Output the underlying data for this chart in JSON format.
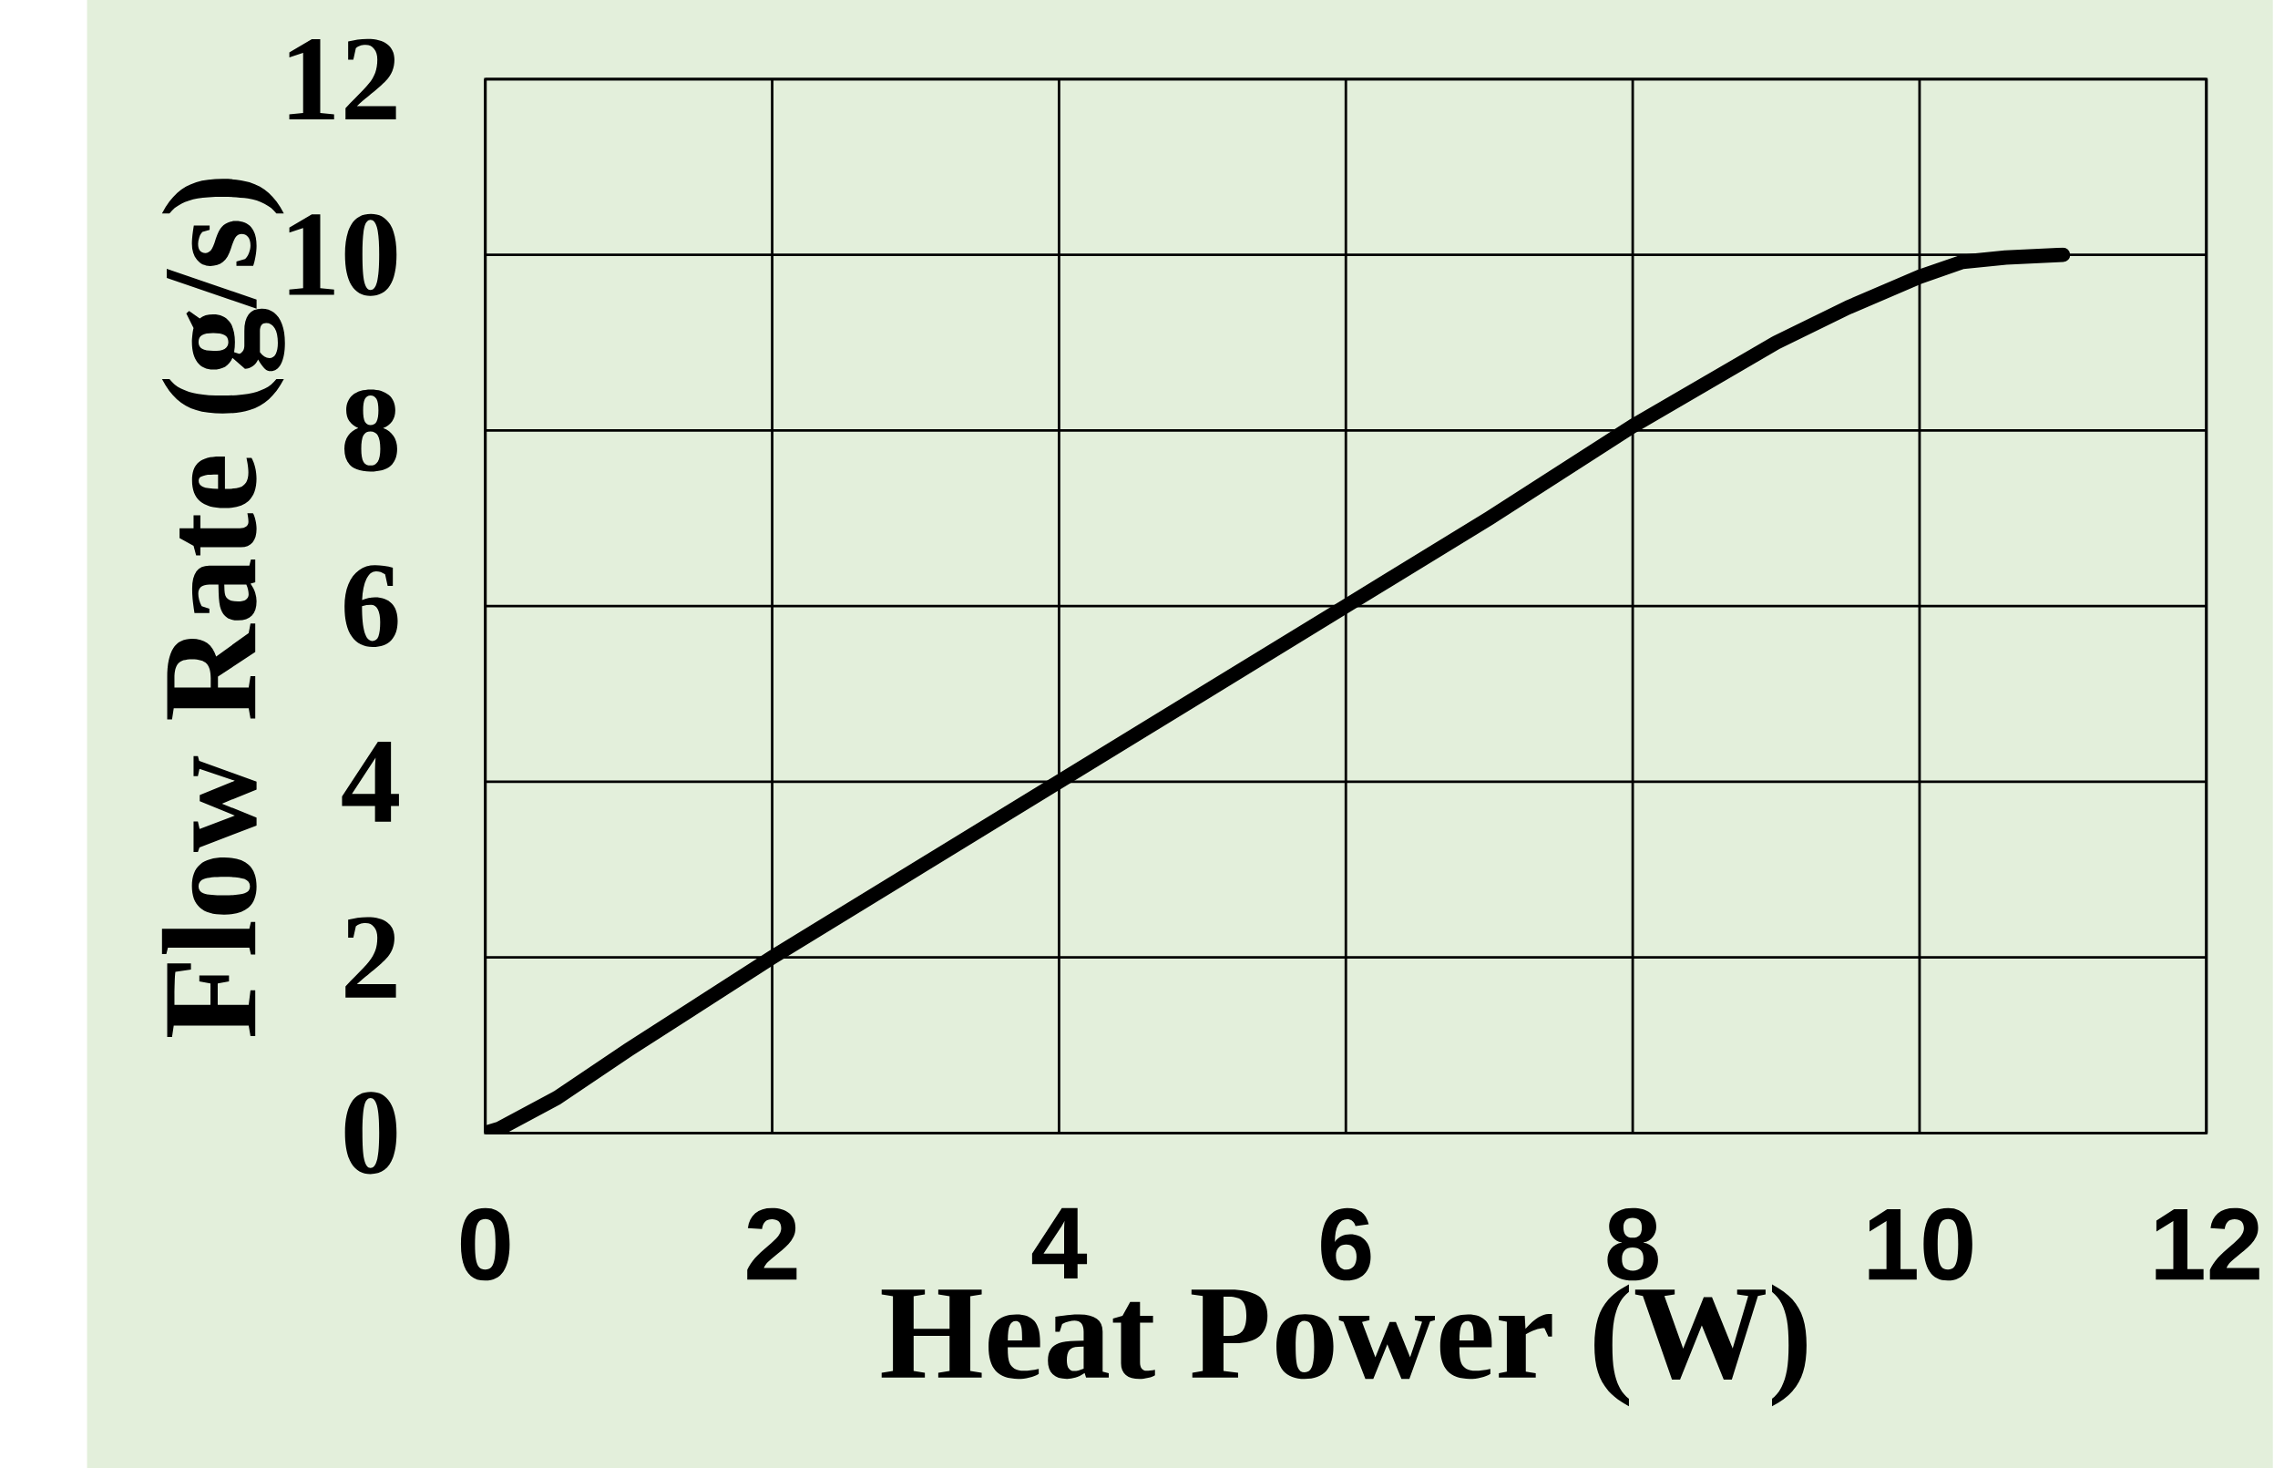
{
  "chart_data": {
    "type": "line",
    "xlabel": "Heat Power (W)",
    "ylabel": "Flow Rate (g/s)",
    "x": [
      0,
      0.1,
      0.5,
      1,
      2,
      3,
      4,
      5,
      6,
      7,
      8,
      9,
      9.5,
      10,
      10.3,
      10.6,
      11
    ],
    "series": [
      {
        "color": "#000000",
        "values": [
          0,
          0.05,
          0.4,
          0.95,
          2.0,
          3.0,
          4.0,
          5.0,
          6.0,
          7.0,
          8.05,
          9.0,
          9.4,
          9.75,
          9.92,
          9.97,
          10.0
        ]
      }
    ],
    "xlim": [
      0,
      12
    ],
    "ylim": [
      0,
      12
    ],
    "xticks": [
      0,
      2,
      4,
      6,
      8,
      10,
      12
    ],
    "yticks": [
      0,
      2,
      4,
      6,
      8,
      10,
      12
    ],
    "grid": true,
    "line_style": "solid"
  }
}
